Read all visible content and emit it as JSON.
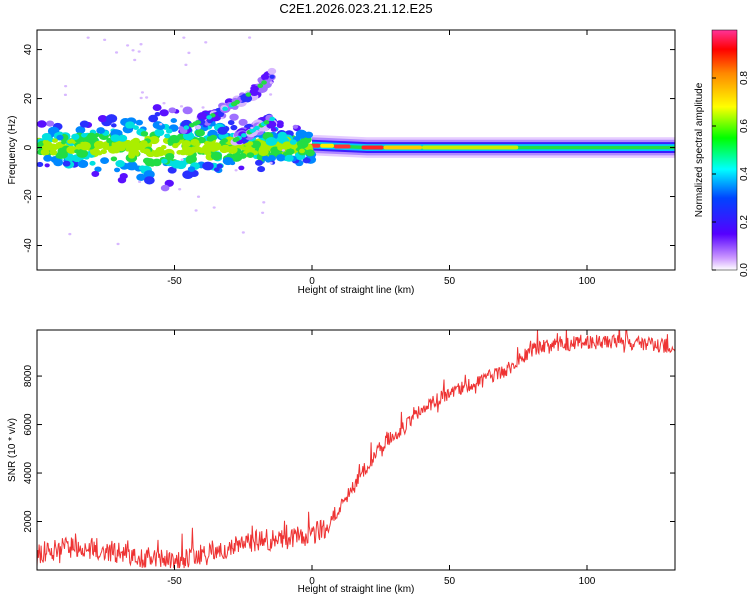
{
  "title": "C2E1.2026.023.21.12.E25",
  "chart_data": [
    {
      "type": "heatmap",
      "xlabel": "Height of straight line (km)",
      "ylabel": "Frequency (Hz)",
      "xlim": [
        -100,
        132
      ],
      "ylim": [
        -50,
        48
      ],
      "xticks": [
        "-50",
        "0",
        "50",
        "100"
      ],
      "yticks": [
        "-40",
        "-20",
        "0",
        "20",
        "40"
      ],
      "colorbar": {
        "label": "Normalized spectral amplitude",
        "range": [
          0,
          1
        ],
        "ticks": [
          "0.0",
          "0.2",
          "0.4",
          "0.6",
          "0.8"
        ]
      },
      "ridges": [
        {
          "name": "main",
          "points": [
            [
              -100,
              0
            ],
            [
              -80,
              1
            ],
            [
              -60,
              0
            ],
            [
              -40,
              -1
            ],
            [
              -20,
              -1
            ],
            [
              0,
              1
            ],
            [
              20,
              0
            ],
            [
              50,
              0
            ],
            [
              80,
              0
            ],
            [
              100,
              0
            ],
            [
              132,
              0
            ]
          ]
        },
        {
          "name": "upper-branch",
          "points": [
            [
              -48,
              7
            ],
            [
              -38,
              12
            ],
            [
              -28,
              18
            ],
            [
              -20,
              24
            ],
            [
              -14,
              30
            ]
          ]
        },
        {
          "name": "lower-branch",
          "points": [
            [
              -28,
              3
            ],
            [
              -20,
              8
            ],
            [
              -14,
              12
            ]
          ]
        }
      ]
    },
    {
      "type": "line",
      "xlabel": "Height of straight line (km)",
      "ylabel": "SNR (10 * v/v)",
      "xlim": [
        -100,
        132
      ],
      "ylim": [
        0,
        9900
      ],
      "xticks": [
        "-50",
        "0",
        "50",
        "100"
      ],
      "yticks": [
        "2000",
        "4000",
        "6000",
        "8000"
      ],
      "color": "#ee3333",
      "x": [
        -100,
        -90,
        -80,
        -70,
        -60,
        -50,
        -40,
        -30,
        -20,
        -10,
        0,
        5,
        10,
        15,
        20,
        25,
        30,
        35,
        40,
        45,
        50,
        55,
        60,
        65,
        70,
        75,
        80,
        85,
        90,
        95,
        100,
        110,
        120,
        132
      ],
      "y": [
        600,
        900,
        900,
        700,
        500,
        400,
        600,
        900,
        1200,
        1300,
        1400,
        1800,
        2600,
        3400,
        4300,
        5100,
        5600,
        6000,
        6600,
        7000,
        7300,
        7500,
        7700,
        8000,
        8200,
        8600,
        9100,
        9200,
        9300,
        9350,
        9400,
        9400,
        9350,
        9200
      ]
    }
  ]
}
